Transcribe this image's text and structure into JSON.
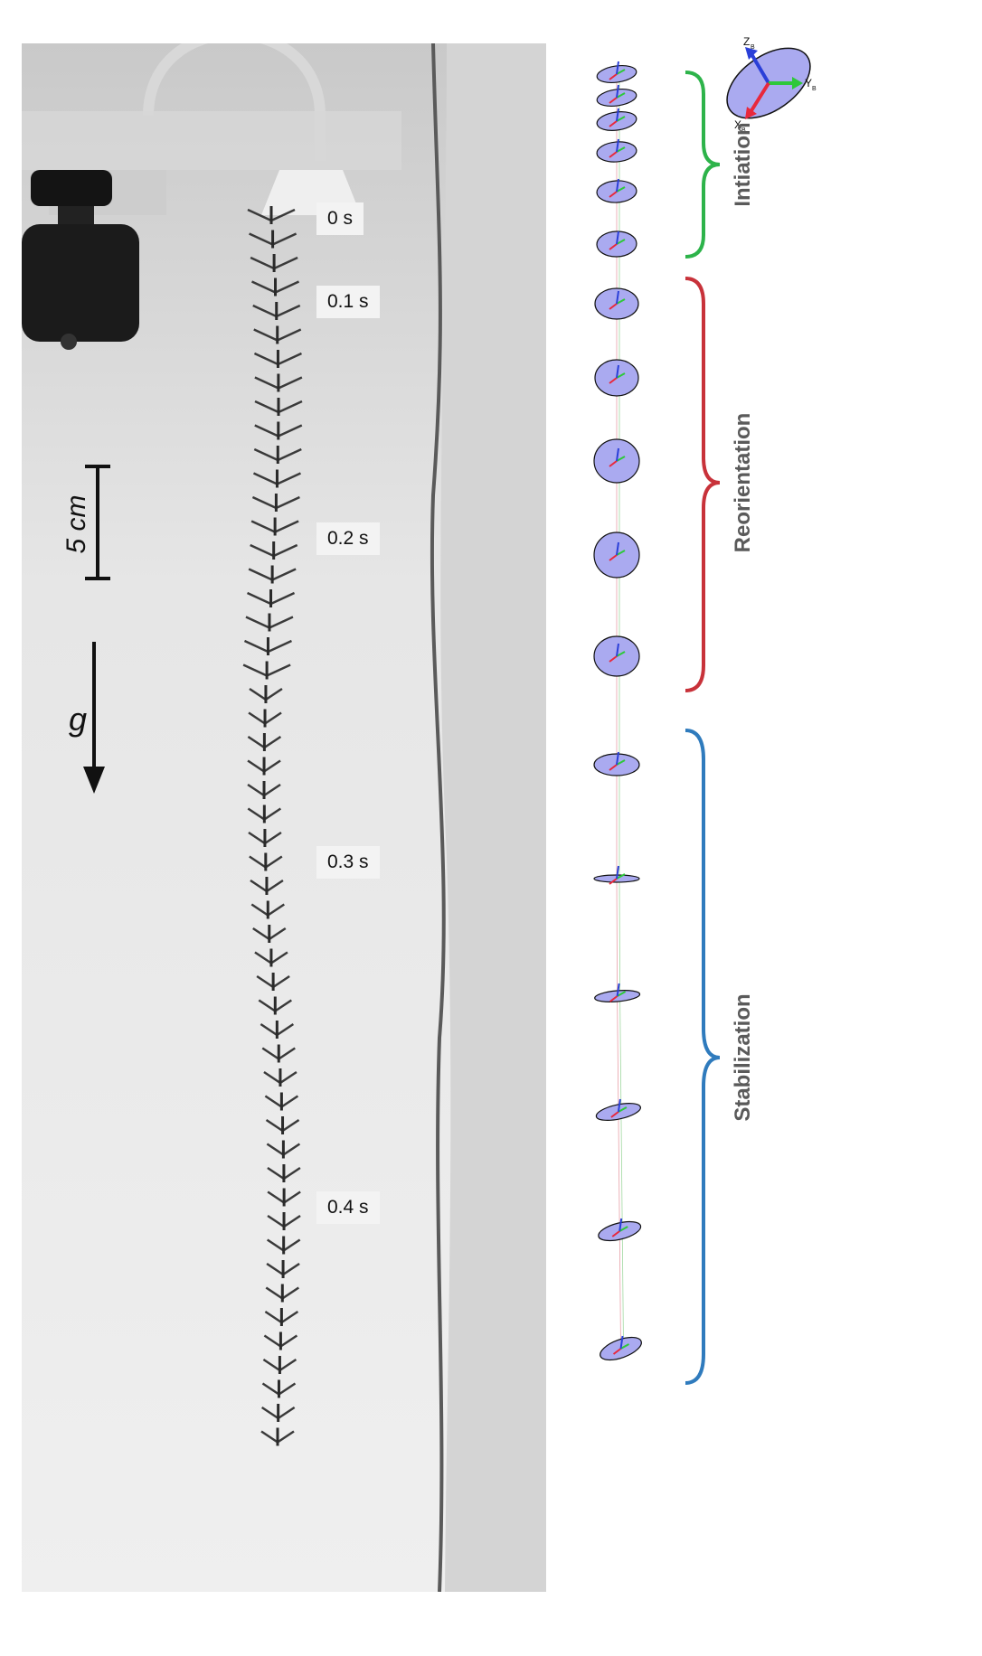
{
  "photo": {
    "time_labels": [
      "0 s",
      "0.1 s",
      "0.2 s",
      "0.3 s",
      "0.4 s"
    ],
    "scale_label": "5 cm",
    "gravity_label": "g"
  },
  "diagram": {
    "phases": [
      {
        "label": "Intiation",
        "color": "#2db34a"
      },
      {
        "label": "Reorientation",
        "color": "#c8323a"
      },
      {
        "label": "Stabilization",
        "color": "#2f7bbd"
      }
    ],
    "axes_legend": {
      "x": "X",
      "y": "Y",
      "z": "Z",
      "subscript": "B"
    },
    "colors": {
      "disc_fill": "#aaaaf0",
      "x_axis": "#e8283c",
      "y_axis": "#2ec83a",
      "z_axis": "#2a3fd8"
    }
  }
}
